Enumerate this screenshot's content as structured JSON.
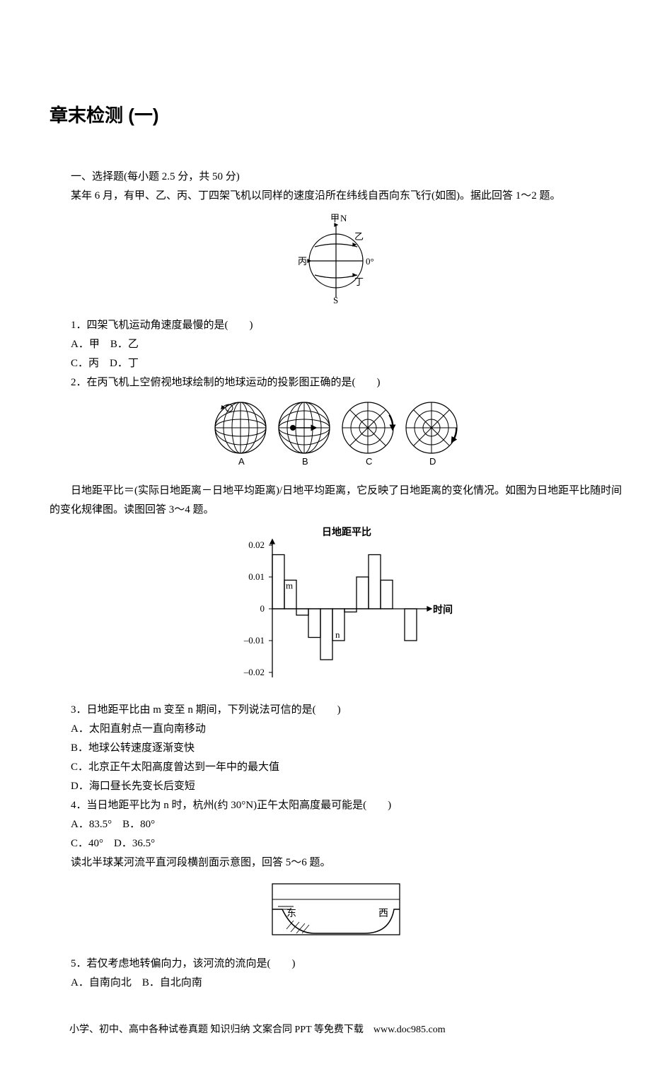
{
  "title": "章末检测 (一)",
  "section1": {
    "header": "一、选择题(每小题 2.5 分，共 50 分)",
    "intro": "某年 6 月，有甲、乙、丙、丁四架飞机以同样的速度沿所在纬线自西向东飞行(如图)。据此回答 1～2 题。"
  },
  "fig1": {
    "labels": {
      "top": "甲",
      "N": "N",
      "upper": "乙",
      "left": "丙",
      "right": "0°",
      "lower": "丁",
      "S": "S"
    },
    "radius": 38,
    "stroke": "#000000",
    "bg": "#ffffff"
  },
  "q1": {
    "stem": "1．四架飞机运动角速度最慢的是(　　)",
    "optA": "A．甲　B．乙",
    "optB": "C．丙　D．丁"
  },
  "q2": {
    "stem": "2．在丙飞机上空俯视地球绘制的地球运动的投影图正确的是(　　)",
    "labels": [
      "A",
      "B",
      "C",
      "D"
    ]
  },
  "fig2": {
    "radius": 36,
    "stroke": "#000000"
  },
  "passage2": "日地距平比＝(实际日地距离－日地平均距离)/日地平均距离，它反映了日地距离的变化情况。如图为日地距平比随时间的变化规律图。读图回答 3～4 题。",
  "fig3": {
    "title": "日地距平比",
    "ylabel_values": [
      "0.02",
      "0.01",
      "0",
      "–0.01",
      "–0.02"
    ],
    "xlabel": "时间",
    "m": "m",
    "n": "n",
    "bars": [
      0.017,
      0.009,
      -0.002,
      -0.009,
      -0.016,
      -0.01,
      -0.001,
      0.01,
      0.017,
      0.009,
      0.0,
      -0.01
    ],
    "ylim": [
      -0.02,
      0.02
    ],
    "stroke": "#000000",
    "title_fontsize": 14,
    "tick_fontsize": 13
  },
  "q3": {
    "stem": "3．日地距平比由 m 变至 n 期间，下列说法可信的是(　　)",
    "A": "A．太阳直射点一直向南移动",
    "B": "B．地球公转速度逐渐变快",
    "C": "C．北京正午太阳高度曾达到一年中的最大值",
    "D": "D．海口昼长先变长后变短"
  },
  "q4": {
    "stem": "4．当日地距平比为 n 时，杭州(约 30°N)正午太阳高度最可能是(　　)",
    "A": "A．83.5°　B．80°",
    "B": "C．40°　D．36.5°"
  },
  "passage3": "读北半球某河流平直河段横剖面示意图，回答 5～6 题。",
  "fig4": {
    "left": "东",
    "right": "西",
    "stroke": "#000000"
  },
  "q5": {
    "stem": "5．若仅考虑地转偏向力，该河流的流向是(　　)",
    "A": "A．自南向北　B．自北向南"
  },
  "footer": "小学、初中、高中各种试卷真题 知识归纳 文案合同 PPT 等免费下载　www.doc985.com"
}
